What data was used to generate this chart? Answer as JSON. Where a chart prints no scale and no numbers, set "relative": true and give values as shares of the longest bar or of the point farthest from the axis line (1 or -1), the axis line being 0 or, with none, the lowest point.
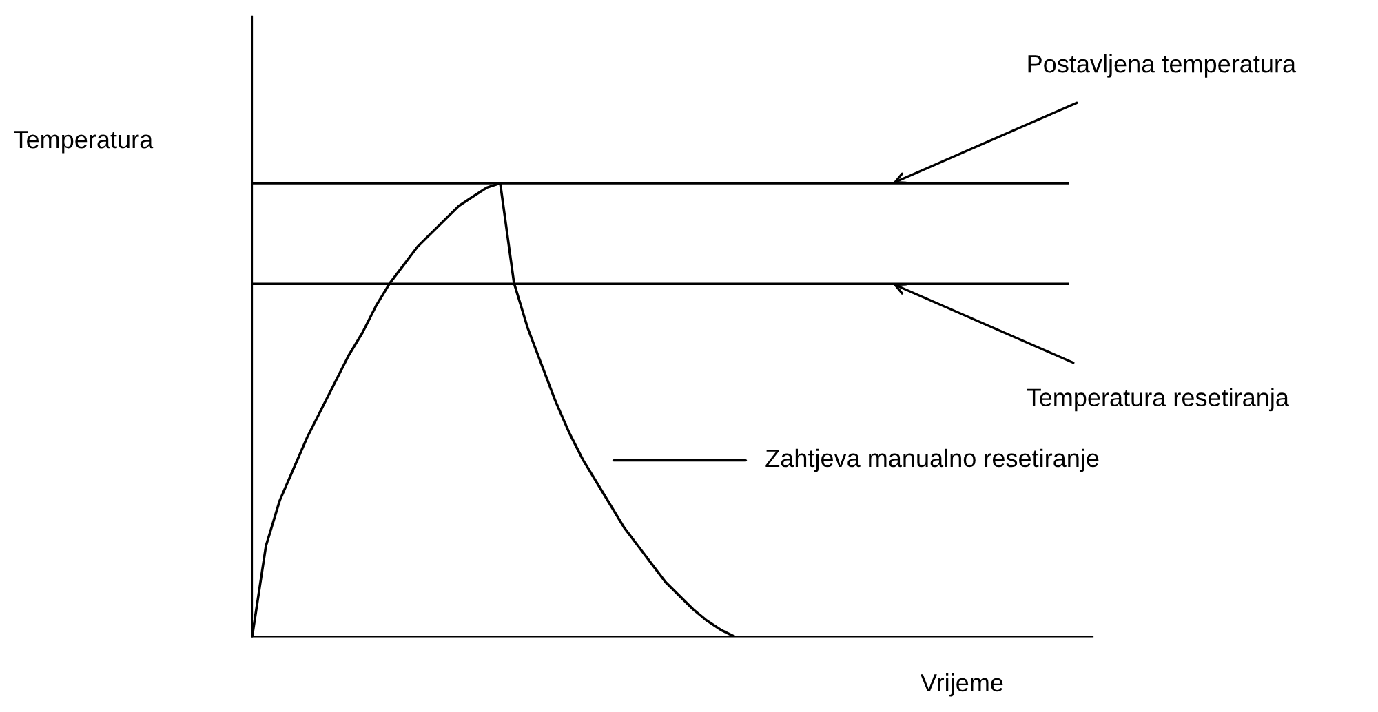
{
  "chart_data": {
    "type": "line",
    "relative": true,
    "xlabel": "Vrijeme",
    "ylabel": "Temperatura",
    "categories": [
      null,
      null,
      null,
      null,
      null,
      null,
      null,
      null,
      null,
      null,
      null,
      null,
      null,
      null,
      null,
      null,
      null,
      null,
      null,
      null,
      null,
      null,
      null,
      null,
      null,
      null,
      null,
      null,
      null,
      null,
      null,
      null,
      null,
      null,
      null,
      null,
      null,
      null,
      null,
      null,
      null,
      null,
      null,
      null,
      null,
      null,
      null,
      null,
      null,
      null,
      null,
      null,
      null,
      null,
      null,
      null,
      null,
      null,
      null,
      null,
      null
    ],
    "series": [
      {
        "color": "#000000",
        "values": [
          0,
          0.2,
          0.3,
          0.37,
          0.44,
          0.5,
          0.56,
          0.62,
          0.67,
          0.73,
          0.78,
          0.82,
          0.86,
          0.89,
          0.92,
          0.95,
          0.97,
          0.99,
          1,
          0.78,
          0.68,
          0.6,
          0.52,
          0.45,
          0.39,
          0.34,
          0.29,
          0.24,
          0.2,
          0.16,
          0.12,
          0.09,
          0.06,
          0.035,
          0.015,
          0,
          null,
          null,
          null,
          null,
          null,
          null,
          null,
          null,
          null,
          null,
          null,
          null,
          null,
          null,
          null,
          null,
          null,
          null,
          null,
          null,
          null,
          null,
          null,
          null,
          null
        ]
      }
    ],
    "ref_lines": [
      {
        "axis": "y",
        "value": 1,
        "label": "Postavljena temperatura",
        "color": "#000000"
      },
      {
        "axis": "y",
        "value": 0.778,
        "label": "Temperatura resetiranja",
        "color": "#000000"
      }
    ],
    "annotations": [
      "Zahtjeva manualno resetiranje"
    ]
  }
}
